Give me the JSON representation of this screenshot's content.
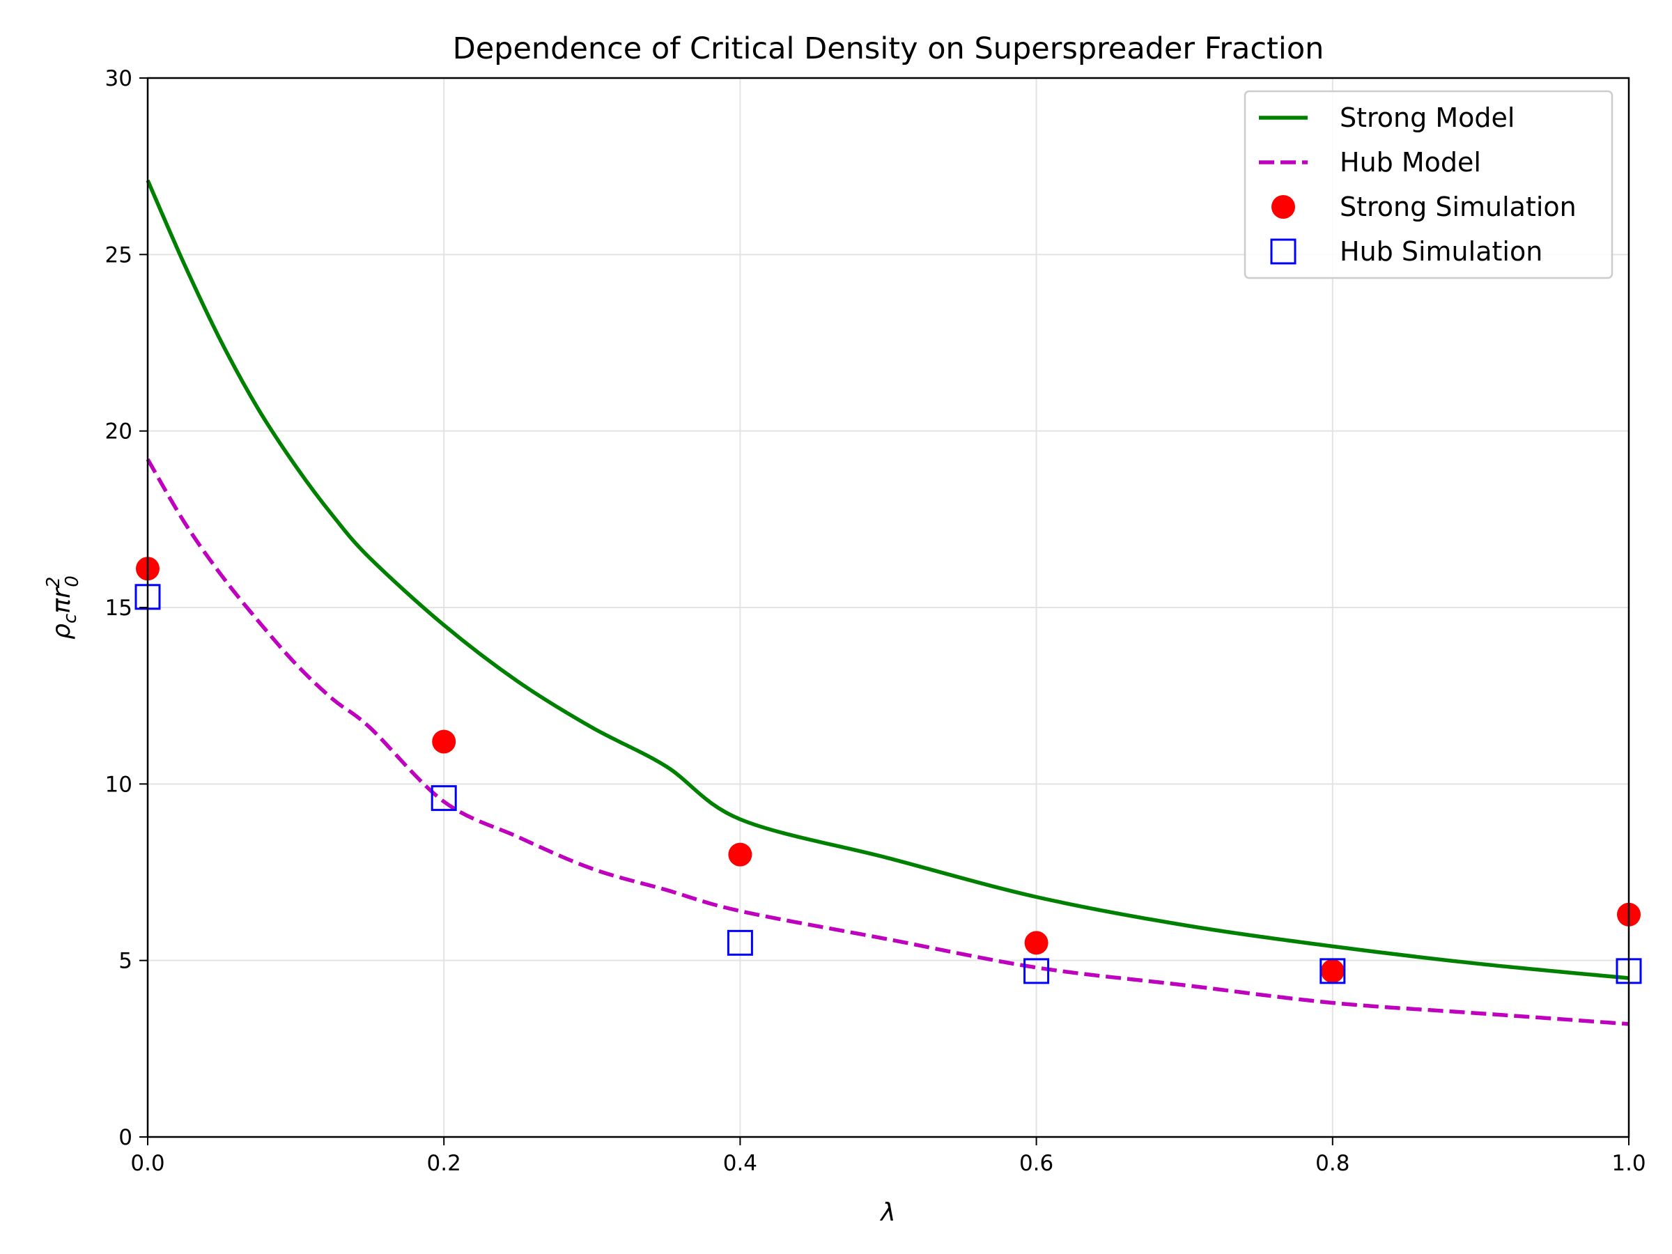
{
  "chart_data": {
    "type": "line",
    "title": "Dependence of Critical Density on Superspreader Fraction",
    "xlabel": "λ",
    "ylabel": "ρcπr0²",
    "xlim": [
      0.0,
      1.0
    ],
    "ylim": [
      0,
      30
    ],
    "x_ticks": [
      "0.0",
      "0.2",
      "0.4",
      "0.6",
      "0.8",
      "1.0"
    ],
    "y_ticks": [
      "0",
      "5",
      "10",
      "15",
      "20",
      "25",
      "30"
    ],
    "grid": true,
    "legend_position": "top-right",
    "series": [
      {
        "name": "Strong Model",
        "kind": "line",
        "style": "solid",
        "color": "#008000",
        "x": [
          0.0,
          0.025,
          0.05,
          0.075,
          0.1,
          0.125,
          0.15,
          0.2,
          0.25,
          0.3,
          0.35,
          0.4,
          0.5,
          0.6,
          0.7,
          0.8,
          0.9,
          1.0
        ],
        "y": [
          27.1,
          24.7,
          22.5,
          20.6,
          19.0,
          17.6,
          16.4,
          14.5,
          12.9,
          11.6,
          10.5,
          9.0,
          7.9,
          6.8,
          6.0,
          5.4,
          4.9,
          4.5
        ]
      },
      {
        "name": "Hub Model",
        "kind": "line",
        "style": "dashed",
        "color": "#bf00bf",
        "x": [
          0.0,
          0.025,
          0.05,
          0.075,
          0.1,
          0.125,
          0.15,
          0.2,
          0.25,
          0.3,
          0.35,
          0.4,
          0.5,
          0.6,
          0.7,
          0.8,
          0.9,
          1.0
        ],
        "y": [
          19.2,
          17.4,
          15.9,
          14.6,
          13.4,
          12.4,
          11.6,
          9.5,
          8.5,
          7.6,
          7.0,
          6.4,
          5.6,
          4.8,
          4.3,
          3.8,
          3.5,
          3.2
        ]
      },
      {
        "name": "Strong Simulation",
        "kind": "scatter",
        "marker": "circle",
        "color": "#ff0000",
        "x": [
          0.0,
          0.2,
          0.4,
          0.6,
          0.8,
          1.0
        ],
        "y": [
          16.1,
          11.2,
          8.0,
          5.5,
          4.7,
          6.3
        ]
      },
      {
        "name": "Hub Simulation",
        "kind": "scatter",
        "marker": "square-open",
        "color": "#0000ff",
        "x": [
          0.0,
          0.2,
          0.4,
          0.6,
          0.8,
          1.0
        ],
        "y": [
          15.3,
          9.6,
          5.5,
          4.7,
          4.7,
          4.7
        ]
      }
    ]
  }
}
